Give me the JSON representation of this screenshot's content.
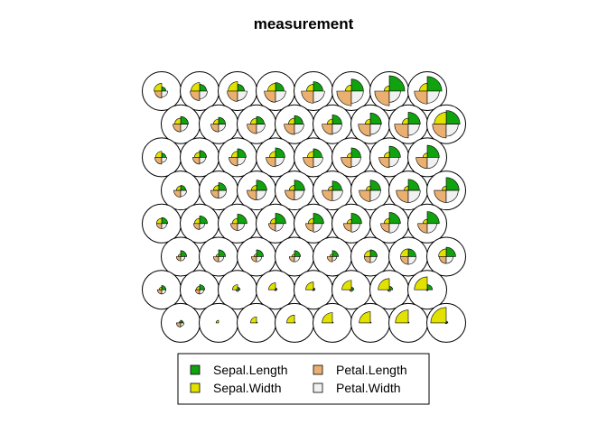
{
  "chart_data": {
    "type": "som-codes-segments",
    "title": "measurement",
    "grid": {
      "xdim": 8,
      "ydim": 8,
      "topo": "hexagonal"
    },
    "legend": {
      "placement": "bottom-center",
      "columns": 2,
      "entries": [
        {
          "name": "Sepal.Length",
          "color": "#11a20f"
        },
        {
          "name": "Sepal.Width",
          "color": "#e2e200"
        },
        {
          "name": "Petal.Length",
          "color": "#e9b071"
        },
        {
          "name": "Petal.Width",
          "color": "#f1f1f1"
        }
      ]
    },
    "variables": [
      "Sepal.Length",
      "Sepal.Width",
      "Petal.Length",
      "Petal.Width"
    ],
    "colors": [
      "#11a20f",
      "#e2e200",
      "#e9b071",
      "#f1f1f1"
    ],
    "codes_rows_top_to_bottom": [
      [
        [
          0.25,
          0.45,
          0.4,
          0.35
        ],
        [
          0.4,
          0.5,
          0.55,
          0.45
        ],
        [
          0.4,
          0.55,
          0.6,
          0.55
        ],
        [
          0.5,
          0.45,
          0.65,
          0.6
        ],
        [
          0.55,
          0.4,
          0.7,
          0.65
        ],
        [
          0.7,
          0.35,
          0.85,
          0.7
        ],
        [
          0.9,
          0.3,
          0.85,
          0.65
        ],
        [
          0.85,
          0.45,
          0.75,
          0.7
        ]
      ],
      [
        [
          0.45,
          0.35,
          0.45,
          0.4
        ],
        [
          0.4,
          0.3,
          0.45,
          0.4
        ],
        [
          0.45,
          0.35,
          0.55,
          0.5
        ],
        [
          0.5,
          0.35,
          0.6,
          0.55
        ],
        [
          0.55,
          0.3,
          0.6,
          0.55
        ],
        [
          0.65,
          0.3,
          0.7,
          0.6
        ],
        [
          0.7,
          0.35,
          0.8,
          0.65
        ],
        [
          0.8,
          0.7,
          0.8,
          0.7
        ]
      ],
      [
        [
          0.25,
          0.35,
          0.4,
          0.3
        ],
        [
          0.4,
          0.3,
          0.4,
          0.35
        ],
        [
          0.5,
          0.35,
          0.5,
          0.45
        ],
        [
          0.55,
          0.35,
          0.55,
          0.5
        ],
        [
          0.5,
          0.35,
          0.6,
          0.55
        ],
        [
          0.55,
          0.25,
          0.6,
          0.55
        ],
        [
          0.65,
          0.3,
          0.6,
          0.55
        ],
        [
          0.7,
          0.25,
          0.65,
          0.65
        ]
      ],
      [
        [
          0.3,
          0.25,
          0.4,
          0.35
        ],
        [
          0.45,
          0.3,
          0.45,
          0.45
        ],
        [
          0.6,
          0.3,
          0.55,
          0.55
        ],
        [
          0.6,
          0.3,
          0.55,
          0.55
        ],
        [
          0.55,
          0.25,
          0.6,
          0.6
        ],
        [
          0.6,
          0.25,
          0.65,
          0.6
        ],
        [
          0.65,
          0.25,
          0.7,
          0.7
        ],
        [
          0.75,
          0.25,
          0.7,
          0.7
        ]
      ],
      [
        [
          0.35,
          0.3,
          0.3,
          0.3
        ],
        [
          0.45,
          0.3,
          0.35,
          0.3
        ],
        [
          0.55,
          0.3,
          0.4,
          0.4
        ],
        [
          0.6,
          0.3,
          0.4,
          0.45
        ],
        [
          0.6,
          0.3,
          0.45,
          0.5
        ],
        [
          0.6,
          0.25,
          0.45,
          0.5
        ],
        [
          0.65,
          0.3,
          0.5,
          0.55
        ],
        [
          0.7,
          0.25,
          0.55,
          0.55
        ]
      ],
      [
        [
          0.35,
          0.15,
          0.25,
          0.25
        ],
        [
          0.4,
          0.15,
          0.3,
          0.3
        ],
        [
          0.4,
          0.15,
          0.3,
          0.3
        ],
        [
          0.35,
          0.15,
          0.3,
          0.3
        ],
        [
          0.35,
          0.15,
          0.3,
          0.25
        ],
        [
          0.4,
          0.35,
          0.35,
          0.35
        ],
        [
          0.45,
          0.45,
          0.45,
          0.45
        ],
        [
          0.55,
          0.45,
          0.4,
          0.4
        ]
      ],
      [
        [
          0.25,
          0.15,
          0.25,
          0.25
        ],
        [
          0.3,
          0.2,
          0.25,
          0.25
        ],
        [
          0.15,
          0.3,
          0.1,
          0.1
        ],
        [
          0.1,
          0.4,
          0.05,
          0.05
        ],
        [
          0.1,
          0.45,
          0.05,
          0.05
        ],
        [
          0.15,
          0.55,
          0.1,
          0.1
        ],
        [
          0.2,
          0.65,
          0.1,
          0.1
        ],
        [
          0.3,
          0.75,
          0.05,
          0.05
        ]
      ],
      [
        [
          0.15,
          0.1,
          0.25,
          0.2
        ],
        [
          0.0,
          0.15,
          0.0,
          0.0
        ],
        [
          0.05,
          0.35,
          0.0,
          0.0
        ],
        [
          0.05,
          0.45,
          0.0,
          0.0
        ],
        [
          0.05,
          0.6,
          0.0,
          0.0
        ],
        [
          0.05,
          0.65,
          0.0,
          0.0
        ],
        [
          0.05,
          0.75,
          0.0,
          0.0
        ],
        [
          0.1,
          0.9,
          0.05,
          0.05
        ]
      ]
    ]
  }
}
